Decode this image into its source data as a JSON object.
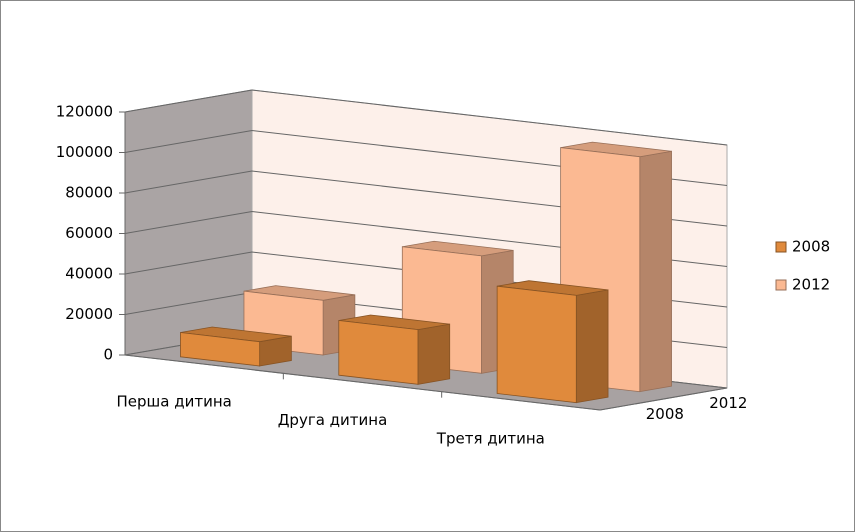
{
  "chart_data": {
    "type": "bar3d",
    "categories": [
      "Перша дитина",
      "Друга дитина",
      "Третя дитина"
    ],
    "series": [
      {
        "name": "2008",
        "color": "#e08a3c",
        "values": [
          12000,
          27000,
          53000
        ]
      },
      {
        "name": "2012",
        "color": "#fbb992",
        "values": [
          27000,
          58000,
          116000
        ]
      }
    ],
    "ylim": [
      0,
      120000
    ],
    "yticks": [
      0,
      20000,
      40000,
      60000,
      80000,
      100000,
      120000
    ],
    "grid": true,
    "legend": "right"
  }
}
